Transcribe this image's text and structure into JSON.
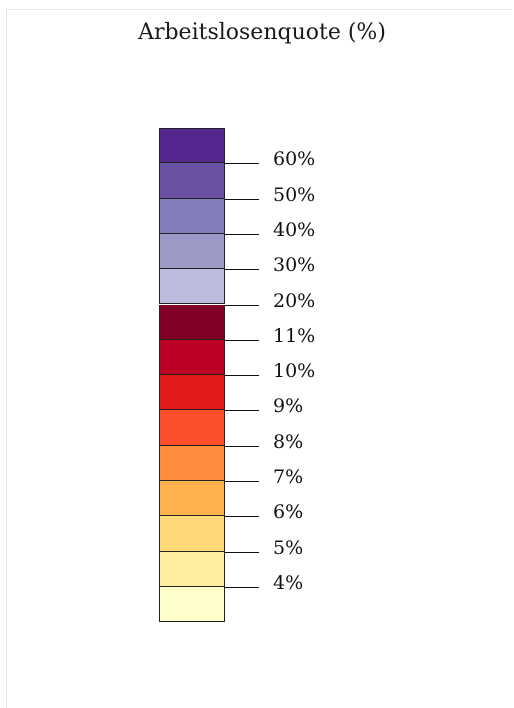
{
  "title": "Arbeitslosenquote (%)",
  "legend": {
    "colors": [
      "#54278f",
      "#6a51a3",
      "#807dba",
      "#9e9ac8",
      "#bcbddc",
      "#800026",
      "#bd0026",
      "#e31a1c",
      "#fc4e2a",
      "#fd8d3c",
      "#feb24c",
      "#fed976",
      "#ffeda0",
      "#ffffcc"
    ],
    "labels": [
      "60%",
      "50%",
      "40%",
      "30%",
      "20%",
      "11%",
      "10%",
      "9%",
      "8%",
      "7%",
      "6%",
      "5%",
      "4%"
    ]
  }
}
